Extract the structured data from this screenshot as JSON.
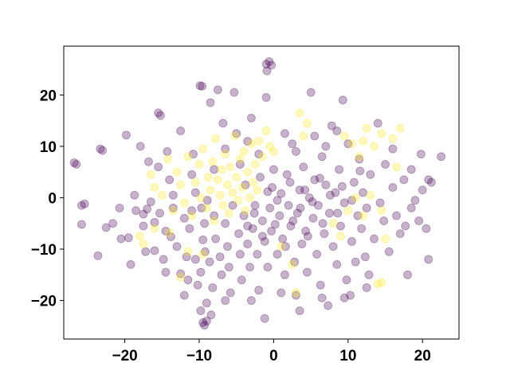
{
  "chart_data": {
    "type": "scatter",
    "title": "",
    "xlabel": "",
    "ylabel": "",
    "xlim": [
      -28.2,
      24.9
    ],
    "ylim": [
      -27.5,
      29.5
    ],
    "x_ticks": [
      -20,
      -10,
      0,
      10,
      20
    ],
    "y_ticks": [
      -20,
      -10,
      0,
      10,
      20
    ],
    "x_tick_labels": [
      "−20",
      "−10",
      "0",
      "10",
      "20"
    ],
    "y_tick_labels": [
      "−20",
      "−10",
      "0",
      "10",
      "20"
    ],
    "grid": false,
    "legend": "none",
    "marker_alpha": 0.3,
    "series": [
      {
        "color": "#440154",
        "points": [
          [
            -26.8,
            6.8
          ],
          [
            -26.5,
            6.5
          ],
          [
            -25.8,
            -1.5
          ],
          [
            -25.4,
            -1.2
          ],
          [
            -25.8,
            -5.2
          ],
          [
            -23.3,
            9.5
          ],
          [
            -23.0,
            9.2
          ],
          [
            -23.6,
            -11.3
          ],
          [
            -22.5,
            -5.8
          ],
          [
            -21.6,
            -5.0
          ],
          [
            -20.7,
            -2.0
          ],
          [
            -20.5,
            -8.0
          ],
          [
            -19.8,
            12.2
          ],
          [
            -19.2,
            -13.0
          ],
          [
            -19.5,
            -7.8
          ],
          [
            -18.7,
            0.5
          ],
          [
            -17.9,
            10.0
          ],
          [
            -17.5,
            -3.2
          ],
          [
            -17.2,
            -10.5
          ],
          [
            -17.0,
            -2.2
          ],
          [
            -16.5,
            -0.8
          ],
          [
            -16.0,
            -4.8
          ],
          [
            -16.0,
            -10.3
          ],
          [
            -15.5,
            16.5
          ],
          [
            -15.2,
            16.0
          ],
          [
            -15.3,
            -3.0
          ],
          [
            -14.5,
            -6.5
          ],
          [
            -14.8,
            -12.0
          ],
          [
            -14.3,
            9.0
          ],
          [
            -13.8,
            -7.6
          ],
          [
            -13.0,
            -9.5
          ],
          [
            -13.5,
            -2.0
          ],
          [
            -12.5,
            -14.8
          ],
          [
            -12.0,
            -19.0
          ],
          [
            -11.7,
            -11.5
          ],
          [
            -11.3,
            -6.0
          ],
          [
            -11.0,
            -2.5
          ],
          [
            -10.8,
            8.5
          ],
          [
            -10.5,
            -12.0
          ],
          [
            -10.2,
            -17.0
          ],
          [
            -9.9,
            21.8
          ],
          [
            -9.6,
            21.7
          ],
          [
            -9.7,
            -2.0
          ],
          [
            -9.5,
            -8.2
          ],
          [
            -9.8,
            -14.5
          ],
          [
            -9.2,
            -10.5
          ],
          [
            -9.3,
            -5.0
          ],
          [
            -8.6,
            -12.5
          ],
          [
            -8.9,
            -0.5
          ],
          [
            -8.5,
            18.5
          ],
          [
            -9.8,
            -22.0
          ],
          [
            -9.5,
            -24.3
          ],
          [
            -9.3,
            -24.8
          ],
          [
            -9.0,
            -20.5
          ],
          [
            -9.0,
            -24.0
          ],
          [
            -8.4,
            -22.8
          ],
          [
            -8.2,
            -17.5
          ],
          [
            -8.0,
            -3.5
          ],
          [
            -7.5,
            21.0
          ],
          [
            -7.8,
            -8.0
          ],
          [
            -7.2,
            -11.5
          ],
          [
            -7.0,
            -15.0
          ],
          [
            -6.8,
            14.5
          ],
          [
            -6.5,
            -5.0
          ],
          [
            -6.2,
            -9.5
          ],
          [
            -6.0,
            -13.5
          ],
          [
            -5.8,
            -18.5
          ],
          [
            -5.5,
            -1.5
          ],
          [
            -5.3,
            20.5
          ],
          [
            -5.0,
            12.5
          ],
          [
            -4.7,
            -7.0
          ],
          [
            -4.5,
            -11.0
          ],
          [
            -4.3,
            -16.0
          ],
          [
            -4.0,
            -3.5
          ],
          [
            -3.8,
            2.5
          ],
          [
            -3.5,
            -9.0
          ],
          [
            -3.2,
            -13.5
          ],
          [
            -3.0,
            15.5
          ],
          [
            -2.8,
            -6.0
          ],
          [
            -2.5,
            -1.5
          ],
          [
            -2.2,
            -11.0
          ],
          [
            -2.0,
            -18.0
          ],
          [
            -1.8,
            4.0
          ],
          [
            -1.5,
            -4.5
          ],
          [
            -1.2,
            -8.5
          ],
          [
            -1.0,
            19.5
          ],
          [
            -0.8,
            -13.5
          ],
          [
            -0.5,
            -2.0
          ],
          [
            -0.3,
            -6.5
          ],
          [
            -0.2,
            2.0
          ],
          [
            0.0,
            5.5
          ],
          [
            -1.0,
            26.0
          ],
          [
            -0.6,
            26.5
          ],
          [
            -0.9,
            24.7
          ],
          [
            -0.3,
            25.8
          ],
          [
            0.5,
            -11.0
          ],
          [
            0.8,
            -3.5
          ],
          [
            1.0,
            0.8
          ],
          [
            1.2,
            -8.0
          ],
          [
            1.5,
            -15.0
          ],
          [
            1.8,
            4.5
          ],
          [
            2.0,
            -1.5
          ],
          [
            2.3,
            -5.5
          ],
          [
            2.5,
            10.5
          ],
          [
            2.8,
            -12.5
          ],
          [
            3.0,
            -19.0
          ],
          [
            3.2,
            -3.0
          ],
          [
            3.5,
            1.5
          ],
          [
            3.8,
            -9.0
          ],
          [
            4.0,
            6.0
          ],
          [
            4.3,
            -6.5
          ],
          [
            4.5,
            -14.5
          ],
          [
            4.8,
            0.0
          ],
          [
            5.0,
            20.5
          ],
          [
            5.3,
            -4.0
          ],
          [
            5.5,
            3.5
          ],
          [
            5.8,
            -11.0
          ],
          [
            6.0,
            -1.5
          ],
          [
            6.3,
            -17.0
          ],
          [
            6.5,
            8.0
          ],
          [
            6.8,
            -7.0
          ],
          [
            7.0,
            2.5
          ],
          [
            7.3,
            -21.0
          ],
          [
            7.5,
            -3.0
          ],
          [
            7.8,
            14.0
          ],
          [
            8.0,
            -9.5
          ],
          [
            8.3,
            1.0
          ],
          [
            8.5,
            -13.0
          ],
          [
            8.8,
            5.5
          ],
          [
            9.0,
            -5.5
          ],
          [
            9.3,
            19.0
          ],
          [
            9.5,
            -1.0
          ],
          [
            9.8,
            -16.0
          ],
          [
            10.0,
            10.5
          ],
          [
            10.3,
            -19.0
          ],
          [
            10.5,
            -8.5
          ],
          [
            10.8,
            3.0
          ],
          [
            11.0,
            -12.5
          ],
          [
            11.3,
            -3.5
          ],
          [
            11.5,
            7.5
          ],
          [
            11.8,
            -6.0
          ],
          [
            12.0,
            1.0
          ],
          [
            12.3,
            -11.5
          ],
          [
            12.5,
            -2.0
          ],
          [
            12.8,
            -15.0
          ],
          [
            13.0,
            4.5
          ],
          [
            13.5,
            -8.0
          ],
          [
            14.0,
            14.5
          ],
          [
            14.3,
            -1.0
          ],
          [
            14.8,
            -4.5
          ],
          [
            15.0,
            6.5
          ],
          [
            15.5,
            -10.5
          ],
          [
            16.0,
            2.0
          ],
          [
            16.5,
            -3.5
          ],
          [
            16.0,
            9.5
          ],
          [
            17.0,
            -7.0
          ],
          [
            17.5,
            3.5
          ],
          [
            18.0,
            -15.0
          ],
          [
            18.5,
            5.5
          ],
          [
            19.0,
            -0.5
          ],
          [
            19.5,
            -4.5
          ],
          [
            20.0,
            1.5
          ],
          [
            20.5,
            -6.0
          ],
          [
            20.8,
            3.5
          ],
          [
            20.8,
            -12.0
          ],
          [
            21.2,
            3.0
          ],
          [
            22.5,
            8.0
          ],
          [
            17.7,
            -5.5
          ],
          [
            19.8,
            8.5
          ],
          [
            18.5,
            -2.0
          ],
          [
            -12.5,
            13.0
          ],
          [
            -11.0,
            4.5
          ],
          [
            -13.5,
            0.5
          ],
          [
            -15.5,
            6.0
          ],
          [
            -14.0,
            3.5
          ],
          [
            -17.5,
            -5.5
          ],
          [
            -18.5,
            -2.5
          ],
          [
            -16.8,
            7.0
          ],
          [
            -12.0,
            -4.0
          ],
          [
            -10.5,
            1.0
          ],
          [
            -8.0,
            5.5
          ],
          [
            -6.5,
            9.5
          ],
          [
            -4.5,
            6.5
          ],
          [
            -3.5,
            11.0
          ],
          [
            -2.0,
            8.5
          ],
          [
            1.5,
            12.5
          ],
          [
            3.0,
            9.0
          ],
          [
            5.5,
            12.0
          ],
          [
            7.0,
            10.0
          ],
          [
            8.5,
            13.0
          ],
          [
            3.5,
            -22.0
          ],
          [
            -1.2,
            -23.5
          ],
          [
            -3.0,
            -20.0
          ],
          [
            6.5,
            -19.5
          ],
          [
            -6.5,
            -20.0
          ],
          [
            1.0,
            -18.5
          ],
          [
            9.5,
            -19.5
          ],
          [
            12.5,
            -17.5
          ],
          [
            -11.5,
            -16.0
          ],
          [
            -14.5,
            -14.5
          ],
          [
            2.2,
            3.0
          ],
          [
            4.2,
            1.5
          ],
          [
            6.2,
            3.8
          ],
          [
            0.5,
            -0.5
          ],
          [
            -0.8,
            1.2
          ],
          [
            3.6,
            -2.0
          ],
          [
            5.2,
            -0.8
          ],
          [
            7.6,
            0.5
          ],
          [
            2.6,
            -4.5
          ],
          [
            4.6,
            -7.5
          ],
          [
            6.6,
            -5.0
          ],
          [
            8.6,
            -3.0
          ],
          [
            0.2,
            -5.2
          ],
          [
            1.6,
            -9.5
          ],
          [
            -1.5,
            -7.5
          ],
          [
            9.2,
            2.2
          ],
          [
            10.5,
            -0.5
          ],
          [
            11.6,
            5.2
          ],
          [
            -2.6,
            -3.0
          ],
          [
            -3.5,
            -5.5
          ]
        ]
      },
      {
        "color": "#fde725",
        "points": [
          [
            -16.5,
            4.5
          ],
          [
            -16.0,
            2.0
          ],
          [
            -15.0,
            0.5
          ],
          [
            -14.2,
            7.5
          ],
          [
            -13.5,
            -2.5
          ],
          [
            -13.0,
            5.0
          ],
          [
            -12.5,
            2.5
          ],
          [
            -12.0,
            -1.0
          ],
          [
            -11.5,
            8.0
          ],
          [
            -11.0,
            -3.5
          ],
          [
            -10.5,
            3.0
          ],
          [
            -10.0,
            6.5
          ],
          [
            -9.8,
            0.0
          ],
          [
            -9.5,
            9.5
          ],
          [
            -9.0,
            -2.0
          ],
          [
            -8.8,
            4.0
          ],
          [
            -8.5,
            1.5
          ],
          [
            -8.2,
            7.0
          ],
          [
            -8.0,
            -4.5
          ],
          [
            -7.8,
            11.5
          ],
          [
            -7.5,
            3.5
          ],
          [
            -7.2,
            0.5
          ],
          [
            -7.0,
            5.5
          ],
          [
            -6.8,
            -1.5
          ],
          [
            -6.5,
            8.5
          ],
          [
            -6.2,
            2.5
          ],
          [
            -6.0,
            -3.0
          ],
          [
            -5.8,
            6.0
          ],
          [
            -5.5,
            1.0
          ],
          [
            -5.2,
            12.0
          ],
          [
            -5.0,
            4.0
          ],
          [
            -4.8,
            -0.5
          ],
          [
            -4.5,
            7.5
          ],
          [
            -4.2,
            2.0
          ],
          [
            -4.0,
            9.0
          ],
          [
            -3.8,
            -2.5
          ],
          [
            -3.5,
            5.0
          ],
          [
            -3.2,
            0.0
          ],
          [
            -3.0,
            10.5
          ],
          [
            -2.8,
            3.0
          ],
          [
            -2.5,
            6.5
          ],
          [
            -2.2,
            1.5
          ],
          [
            -2.0,
            11.0
          ],
          [
            -1.5,
            8.0
          ],
          [
            -1.0,
            13.0
          ],
          [
            -0.5,
            10.0
          ],
          [
            0.0,
            9.0
          ],
          [
            -9.5,
            -11.0
          ],
          [
            -12.5,
            -15.5
          ],
          [
            -17.5,
            -9.0
          ],
          [
            -16.0,
            -6.0
          ],
          [
            3.5,
            16.5
          ],
          [
            4.0,
            12.0
          ],
          [
            4.5,
            14.5
          ],
          [
            2.5,
            -13.0
          ],
          [
            1.0,
            -9.5
          ],
          [
            3.0,
            -18.5
          ],
          [
            9.5,
            12.0
          ],
          [
            10.5,
            10.5
          ],
          [
            11.5,
            8.0
          ],
          [
            12.0,
            11.0
          ],
          [
            12.5,
            13.5
          ],
          [
            13.5,
            10.0
          ],
          [
            14.5,
            12.5
          ],
          [
            16.0,
            11.5
          ],
          [
            17.0,
            13.5
          ],
          [
            16.5,
            6.0
          ],
          [
            13.0,
            0.5
          ],
          [
            14.5,
            -2.5
          ],
          [
            12.0,
            -3.5
          ],
          [
            11.0,
            0.0
          ],
          [
            15.0,
            -8.0
          ],
          [
            14.5,
            -16.5
          ],
          [
            14.0,
            -16.8
          ],
          [
            10.0,
            -2.5
          ],
          [
            8.0,
            -5.0
          ],
          [
            9.0,
            -7.5
          ],
          [
            -18.0,
            -7.5
          ],
          [
            -14.0,
            -6.8
          ],
          [
            -11.5,
            -10.5
          ]
        ]
      }
    ]
  }
}
